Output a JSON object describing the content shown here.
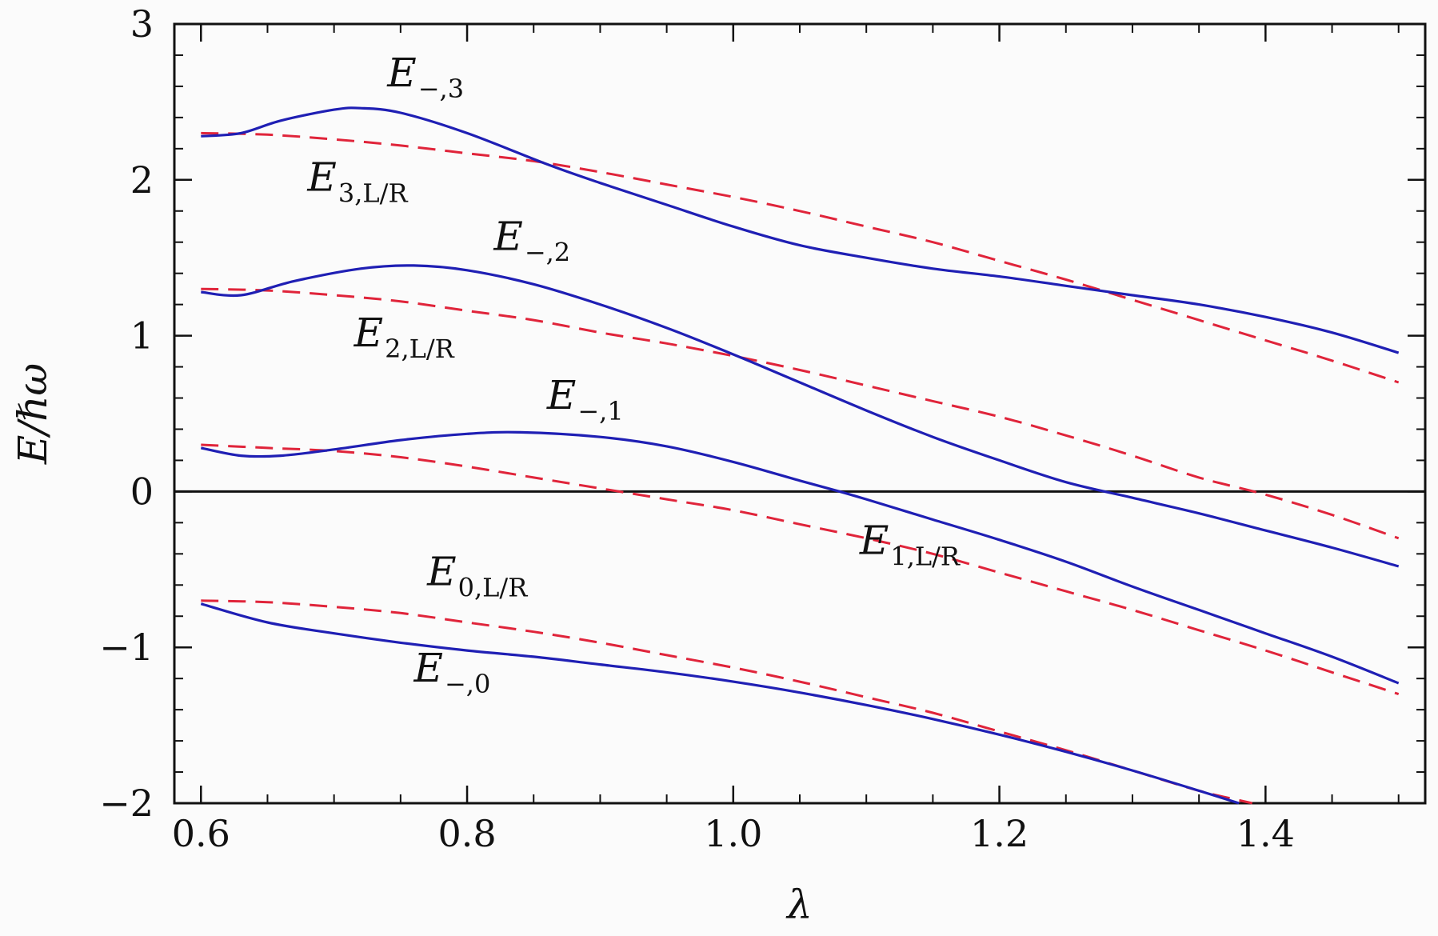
{
  "chart_data": {
    "type": "line",
    "title": "",
    "xlabel": "λ",
    "ylabel": "E/ℏω",
    "xlim": [
      0.58,
      1.52
    ],
    "ylim": [
      -2,
      3
    ],
    "xticks": [
      0.6,
      0.8,
      1.0,
      1.2,
      1.4
    ],
    "xtick_labels": [
      "0.6",
      "0.8",
      "1.0",
      "1.2",
      "1.4"
    ],
    "yticks": [
      -2,
      -1,
      0,
      1,
      2,
      3
    ],
    "ytick_labels": [
      "−2",
      "−1",
      "0",
      "1",
      "2",
      "3"
    ],
    "zero_line": true,
    "grid": false,
    "legend": "none",
    "colors": {
      "solid": "#1f1fb4",
      "dashed": "#e0243a",
      "axis": "#111111"
    },
    "series": [
      {
        "label_main": "E",
        "label_sub": "−,3",
        "style": "solid",
        "x": [
          0.6,
          0.63,
          0.66,
          0.7,
          0.72,
          0.75,
          0.8,
          0.86,
          0.9,
          0.95,
          1.0,
          1.05,
          1.1,
          1.15,
          1.2,
          1.25,
          1.3,
          1.35,
          1.4,
          1.45,
          1.5
        ],
        "y": [
          2.28,
          2.3,
          2.38,
          2.45,
          2.46,
          2.43,
          2.3,
          2.1,
          1.98,
          1.84,
          1.7,
          1.58,
          1.5,
          1.43,
          1.38,
          1.32,
          1.26,
          1.2,
          1.12,
          1.02,
          0.89
        ]
      },
      {
        "label_main": "E",
        "label_sub": "3,L/R",
        "style": "dashed",
        "x": [
          0.6,
          0.65,
          0.7,
          0.75,
          0.8,
          0.85,
          0.9,
          0.95,
          1.0,
          1.05,
          1.1,
          1.15,
          1.2,
          1.25,
          1.3,
          1.35,
          1.4,
          1.45,
          1.5
        ],
        "y": [
          2.3,
          2.29,
          2.26,
          2.22,
          2.17,
          2.12,
          2.05,
          1.97,
          1.89,
          1.8,
          1.7,
          1.6,
          1.48,
          1.36,
          1.23,
          1.1,
          0.97,
          0.84,
          0.7
        ]
      },
      {
        "label_main": "E",
        "label_sub": "−,2",
        "style": "solid",
        "x": [
          0.6,
          0.63,
          0.67,
          0.72,
          0.76,
          0.8,
          0.85,
          0.9,
          0.95,
          1.0,
          1.05,
          1.1,
          1.15,
          1.2,
          1.25,
          1.3,
          1.35,
          1.4,
          1.45,
          1.5
        ],
        "y": [
          1.28,
          1.26,
          1.35,
          1.43,
          1.45,
          1.42,
          1.33,
          1.2,
          1.05,
          0.88,
          0.7,
          0.52,
          0.35,
          0.2,
          0.06,
          -0.04,
          -0.14,
          -0.25,
          -0.36,
          -0.48
        ]
      },
      {
        "label_main": "E",
        "label_sub": "2,L/R",
        "style": "dashed",
        "x": [
          0.6,
          0.65,
          0.7,
          0.75,
          0.8,
          0.85,
          0.9,
          0.95,
          1.0,
          1.05,
          1.1,
          1.15,
          1.2,
          1.25,
          1.3,
          1.35,
          1.4,
          1.45,
          1.5
        ],
        "y": [
          1.3,
          1.29,
          1.26,
          1.22,
          1.16,
          1.1,
          1.02,
          0.95,
          0.87,
          0.78,
          0.68,
          0.58,
          0.48,
          0.36,
          0.23,
          0.09,
          -0.02,
          -0.15,
          -0.3
        ]
      },
      {
        "label_main": "E",
        "label_sub": "−,1",
        "style": "solid",
        "x": [
          0.6,
          0.63,
          0.66,
          0.7,
          0.75,
          0.8,
          0.84,
          0.9,
          0.95,
          1.0,
          1.05,
          1.08,
          1.1,
          1.15,
          1.2,
          1.25,
          1.3,
          1.35,
          1.4,
          1.45,
          1.5
        ],
        "y": [
          0.28,
          0.23,
          0.23,
          0.27,
          0.33,
          0.37,
          0.38,
          0.35,
          0.29,
          0.19,
          0.07,
          0.0,
          -0.05,
          -0.18,
          -0.31,
          -0.45,
          -0.61,
          -0.76,
          -0.91,
          -1.06,
          -1.23
        ]
      },
      {
        "label_main": "E",
        "label_sub": "1,L/R",
        "style": "dashed",
        "x": [
          0.6,
          0.65,
          0.7,
          0.75,
          0.8,
          0.85,
          0.9,
          0.95,
          1.0,
          1.05,
          1.1,
          1.15,
          1.2,
          1.25,
          1.3,
          1.35,
          1.4,
          1.45,
          1.5
        ],
        "y": [
          0.3,
          0.28,
          0.26,
          0.22,
          0.16,
          0.09,
          0.02,
          -0.05,
          -0.12,
          -0.21,
          -0.3,
          -0.4,
          -0.52,
          -0.64,
          -0.76,
          -0.89,
          -1.02,
          -1.16,
          -1.3
        ]
      },
      {
        "label_main": "E",
        "label_sub": "−,0",
        "style": "solid",
        "x": [
          0.6,
          0.65,
          0.7,
          0.75,
          0.8,
          0.85,
          0.9,
          0.95,
          1.0,
          1.05,
          1.1,
          1.15,
          1.2,
          1.25,
          1.3,
          1.35,
          1.38
        ],
        "y": [
          -0.72,
          -0.84,
          -0.91,
          -0.97,
          -1.02,
          -1.06,
          -1.11,
          -1.16,
          -1.22,
          -1.29,
          -1.37,
          -1.46,
          -1.56,
          -1.67,
          -1.79,
          -1.92,
          -2.0
        ]
      },
      {
        "label_main": "E",
        "label_sub": "0,L/R",
        "style": "dashed",
        "x": [
          0.6,
          0.65,
          0.7,
          0.75,
          0.8,
          0.85,
          0.9,
          0.95,
          1.0,
          1.05,
          1.1,
          1.15,
          1.2,
          1.25,
          1.3,
          1.35,
          1.39
        ],
        "y": [
          -0.7,
          -0.71,
          -0.74,
          -0.78,
          -0.84,
          -0.9,
          -0.97,
          -1.05,
          -1.13,
          -1.22,
          -1.32,
          -1.42,
          -1.54,
          -1.66,
          -1.79,
          -1.92,
          -2.0
        ]
      }
    ],
    "annotations": [
      {
        "main": "E",
        "sub": "−,3",
        "x": 0.74,
        "y": 2.6
      },
      {
        "main": "E",
        "sub": "3,L/R",
        "x": 0.68,
        "y": 1.93
      },
      {
        "main": "E",
        "sub": "−,2",
        "x": 0.82,
        "y": 1.55
      },
      {
        "main": "E",
        "sub": "2,L/R",
        "x": 0.715,
        "y": 0.93
      },
      {
        "main": "E",
        "sub": "−,1",
        "x": 0.86,
        "y": 0.53
      },
      {
        "main": "E",
        "sub": "1,L/R",
        "x": 1.095,
        "y": -0.4
      },
      {
        "main": "E",
        "sub": "0,L/R",
        "x": 0.77,
        "y": -0.6
      },
      {
        "main": "E",
        "sub": "−,0",
        "x": 0.76,
        "y": -1.22
      }
    ]
  }
}
